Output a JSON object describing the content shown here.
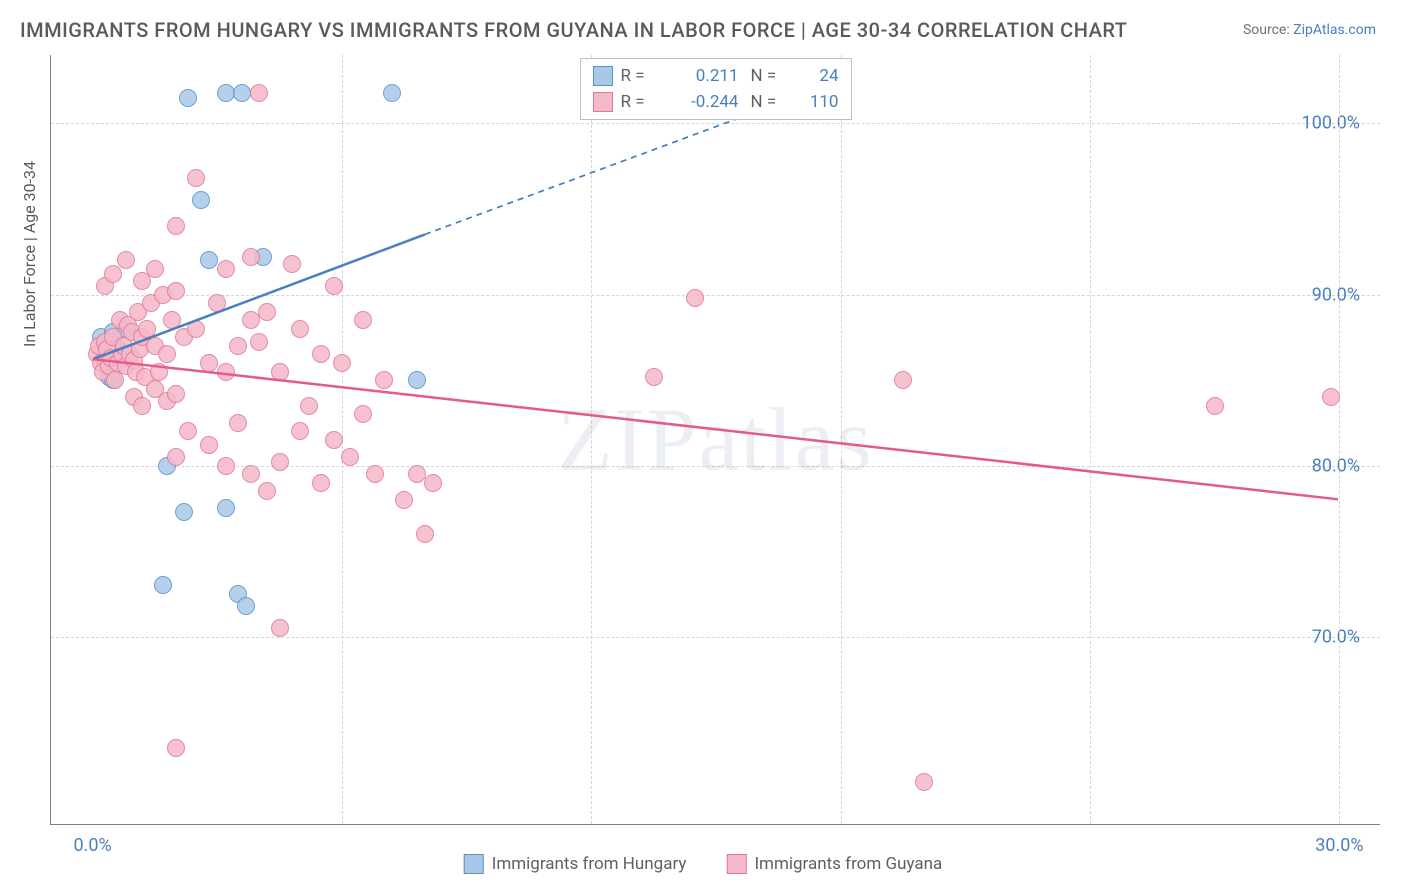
{
  "title": "IMMIGRANTS FROM HUNGARY VS IMMIGRANTS FROM GUYANA IN LABOR FORCE | AGE 30-34 CORRELATION CHART",
  "source_label": "Source: ",
  "source_link": "ZipAtlas.com",
  "ylabel": "In Labor Force | Age 30-34",
  "watermark": "ZIPatlas",
  "chart": {
    "type": "scatter",
    "background_color": "#ffffff",
    "grid_color": "#d5d5d5",
    "axis_color": "#808080",
    "tick_label_color": "#4a7fbf",
    "text_color": "#5a5a5a",
    "title_fontsize": 20,
    "label_fontsize": 16,
    "tick_fontsize": 18,
    "marker_radius": 9,
    "marker_opacity": 0.85,
    "xlim": [
      -1,
      31
    ],
    "ylim": [
      59,
      104
    ],
    "xticks": [
      0,
      6,
      12,
      18,
      24,
      30
    ],
    "xtick_labels": [
      "0.0%",
      "",
      "",
      "",
      "",
      "30.0%"
    ],
    "yticks": [
      70,
      80,
      90,
      100
    ],
    "ytick_labels": [
      "70.0%",
      "80.0%",
      "90.0%",
      "100.0%"
    ]
  },
  "series": [
    {
      "name": "Immigrants from Hungary",
      "fill_color": "#a8c8e8",
      "stroke_color": "#5a8fc8",
      "r_value": "0.211",
      "n_value": "24",
      "trend_line": {
        "x1": 0,
        "y1": 86.2,
        "x2": 8,
        "y2": 93.5,
        "dash_to_x": 18,
        "dash_to_y": 102.5,
        "color": "#4a7fbf",
        "width": 2.5
      },
      "points": [
        [
          0.2,
          87.5
        ],
        [
          0.3,
          86.0
        ],
        [
          0.4,
          85.2
        ],
        [
          0.5,
          87.8
        ],
        [
          0.6,
          86.8
        ],
        [
          0.8,
          88.0
        ],
        [
          0.5,
          85.0
        ],
        [
          2.3,
          101.5
        ],
        [
          2.6,
          95.5
        ],
        [
          3.2,
          101.8
        ],
        [
          3.6,
          101.8
        ],
        [
          2.8,
          92.0
        ],
        [
          4.1,
          92.2
        ],
        [
          1.8,
          80.0
        ],
        [
          2.2,
          77.3
        ],
        [
          3.2,
          77.5
        ],
        [
          3.5,
          72.5
        ],
        [
          3.7,
          71.8
        ],
        [
          1.7,
          73.0
        ],
        [
          7.8,
          85.0
        ],
        [
          7.2,
          101.8
        ]
      ]
    },
    {
      "name": "Immigrants from Guyana",
      "fill_color": "#f5b8c8",
      "stroke_color": "#e07898",
      "r_value": "-0.244",
      "n_value": "110",
      "trend_line": {
        "x1": 0,
        "y1": 86.2,
        "x2": 30,
        "y2": 78.0,
        "color": "#e55a8a",
        "width": 2.5
      },
      "points": [
        [
          0.1,
          86.5
        ],
        [
          0.15,
          87.0
        ],
        [
          0.2,
          86.0
        ],
        [
          0.25,
          85.5
        ],
        [
          0.3,
          87.2
        ],
        [
          0.35,
          86.8
        ],
        [
          0.4,
          85.8
        ],
        [
          0.45,
          86.3
        ],
        [
          0.5,
          87.5
        ],
        [
          0.55,
          85.0
        ],
        [
          0.6,
          86.0
        ],
        [
          0.65,
          88.5
        ],
        [
          0.7,
          86.5
        ],
        [
          0.75,
          87.0
        ],
        [
          0.8,
          85.8
        ],
        [
          0.85,
          88.2
        ],
        [
          0.9,
          86.5
        ],
        [
          0.95,
          87.8
        ],
        [
          1.0,
          86.2
        ],
        [
          1.05,
          85.5
        ],
        [
          1.1,
          89.0
        ],
        [
          1.15,
          86.8
        ],
        [
          1.2,
          87.5
        ],
        [
          1.25,
          85.2
        ],
        [
          1.3,
          88.0
        ],
        [
          1.4,
          89.5
        ],
        [
          1.5,
          87.0
        ],
        [
          1.6,
          85.5
        ],
        [
          1.7,
          90.0
        ],
        [
          1.8,
          86.5
        ],
        [
          1.9,
          88.5
        ],
        [
          0.3,
          90.5
        ],
        [
          0.5,
          91.2
        ],
        [
          0.8,
          92.0
        ],
        [
          1.2,
          90.8
        ],
        [
          1.5,
          91.5
        ],
        [
          2.0,
          90.2
        ],
        [
          1.0,
          84.0
        ],
        [
          1.2,
          83.5
        ],
        [
          1.5,
          84.5
        ],
        [
          1.8,
          83.8
        ],
        [
          2.0,
          84.2
        ],
        [
          2.2,
          87.5
        ],
        [
          2.5,
          88.0
        ],
        [
          2.8,
          86.0
        ],
        [
          3.0,
          89.5
        ],
        [
          3.2,
          85.5
        ],
        [
          3.5,
          87.0
        ],
        [
          3.8,
          88.5
        ],
        [
          2.0,
          80.5
        ],
        [
          2.3,
          82.0
        ],
        [
          2.8,
          81.2
        ],
        [
          3.2,
          80.0
        ],
        [
          3.5,
          82.5
        ],
        [
          3.8,
          79.5
        ],
        [
          4.0,
          87.2
        ],
        [
          4.2,
          89.0
        ],
        [
          4.5,
          85.5
        ],
        [
          4.8,
          91.8
        ],
        [
          5.0,
          88.0
        ],
        [
          5.2,
          83.5
        ],
        [
          5.5,
          86.5
        ],
        [
          5.8,
          90.5
        ],
        [
          4.2,
          78.5
        ],
        [
          4.5,
          80.2
        ],
        [
          5.0,
          82.0
        ],
        [
          5.5,
          79.0
        ],
        [
          5.8,
          81.5
        ],
        [
          6.2,
          80.5
        ],
        [
          6.5,
          83.0
        ],
        [
          6.8,
          79.5
        ],
        [
          6.0,
          86.0
        ],
        [
          6.5,
          88.5
        ],
        [
          7.0,
          85.0
        ],
        [
          7.5,
          78.0
        ],
        [
          7.8,
          79.5
        ],
        [
          8.0,
          76.0
        ],
        [
          8.2,
          79.0
        ],
        [
          2.5,
          96.8
        ],
        [
          2.0,
          94.0
        ],
        [
          3.2,
          91.5
        ],
        [
          4.0,
          101.8
        ],
        [
          3.8,
          92.2
        ],
        [
          2.0,
          63.5
        ],
        [
          4.5,
          70.5
        ],
        [
          14.5,
          89.8
        ],
        [
          13.5,
          85.2
        ],
        [
          19.5,
          85.0
        ],
        [
          20.0,
          61.5
        ],
        [
          27.0,
          83.5
        ],
        [
          29.8,
          84.0
        ]
      ]
    }
  ],
  "legend_top_labels": {
    "r": "R =",
    "n": "N ="
  },
  "legend_bottom": [
    {
      "label": "Immigrants from Hungary",
      "fill": "#a8c8e8",
      "stroke": "#5a8fc8"
    },
    {
      "label": "Immigrants from Guyana",
      "fill": "#f5b8c8",
      "stroke": "#e07898"
    }
  ]
}
